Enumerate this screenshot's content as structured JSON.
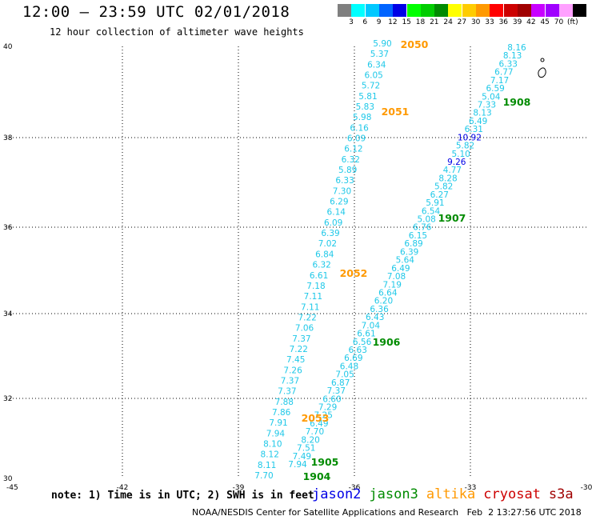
{
  "title": "12:00 – 23:59 UTC 02/01/2018",
  "subtitle": "12 hour collection of altimeter wave heights",
  "scale": {
    "colors": [
      "#7f7f7f",
      "#00ffff",
      "#00c8ff",
      "#0064ff",
      "#0000e6",
      "#00ff00",
      "#00cd00",
      "#008b00",
      "#ffff00",
      "#ffcc00",
      "#ff9900",
      "#ff0000",
      "#cd0000",
      "#a00000",
      "#c800ff",
      "#a000ff",
      "#ffa0ff",
      "#000000"
    ],
    "labels": [
      "3",
      "6",
      "9",
      "12",
      "15",
      "18",
      "21",
      "24",
      "27",
      "30",
      "33",
      "36",
      "39",
      "42",
      "45",
      "70",
      "(ft)"
    ]
  },
  "axes": {
    "x_ticks": [
      "-45",
      "-42",
      "-39",
      "-36",
      "-33",
      "-30"
    ],
    "y_ticks": [
      "40",
      "38",
      "36",
      "34",
      "32",
      "30"
    ]
  },
  "tracks": [
    {
      "name": "altika",
      "color": "#1fc8e8",
      "values": [
        "5.90",
        "5.37",
        "6.34",
        "6.05",
        "5.72",
        "5.81",
        "5.83",
        "5.98",
        "6.16",
        "6.09",
        "6.12",
        "6.32",
        "5.89",
        "6.33",
        "7.30",
        "6.29",
        "6.14",
        "6.09",
        "6.39",
        "7.02",
        "6.84",
        "6.32",
        "6.61",
        "7.18",
        "7.11",
        "7.11",
        "7.22",
        "7.06",
        "7.37",
        "7.22",
        "7.45",
        "7.26",
        "7.37",
        "7.37",
        "7.88",
        "7.86",
        "7.91",
        "7.94",
        "8.10",
        "8.12",
        "8.11",
        "7.70"
      ]
    },
    {
      "name": "jason3",
      "color": "#1fc8e8",
      "values": [
        "8.16",
        "8.13",
        "6.33",
        "6.77",
        "7.17",
        "6.59",
        "5.04",
        "7.33",
        "8.13",
        "6.49",
        "6.31",
        "10.92",
        "5.82",
        "5.10",
        "9.26",
        "4.77",
        "8.28",
        "5.82",
        "6.27",
        "5.91",
        "6.54",
        "5.08",
        "6.76",
        "6.15",
        "6.89",
        "6.39",
        "5.64",
        "6.49",
        "7.08",
        "7.19",
        "6.64",
        "6.20",
        "6.36",
        "6.43",
        "7.04",
        "6.61",
        "6.56",
        "6.63",
        "6.69",
        "6.48",
        "7.05",
        "6.87",
        "7.37",
        "6.60",
        "7.29",
        "7.25",
        "6.49",
        "7.70",
        "8.20",
        "7.51",
        "7.49",
        "7.94"
      ]
    }
  ],
  "time_labels": [
    {
      "text": "2050",
      "color": "#ff9900"
    },
    {
      "text": "2051",
      "color": "#ff9900"
    },
    {
      "text": "2052",
      "color": "#ff9900"
    },
    {
      "text": "2053",
      "color": "#ff9900"
    },
    {
      "text": "1908",
      "color": "#008b00"
    },
    {
      "text": "1907",
      "color": "#008b00"
    },
    {
      "text": "1906",
      "color": "#008b00"
    },
    {
      "text": "1905",
      "color": "#008b00"
    },
    {
      "text": "1904",
      "color": "#008b00"
    }
  ],
  "note": "note: 1) Time is in UTC; 2) SWH is in feet",
  "satellites": [
    {
      "name": "jason2",
      "color": "#0000e6"
    },
    {
      "name": "jason3",
      "color": "#008b00"
    },
    {
      "name": "altika",
      "color": "#ff9900"
    },
    {
      "name": "cryosat",
      "color": "#cd0000"
    },
    {
      "name": "s3a",
      "color": "#a00000"
    }
  ],
  "credit": "NOAA/NESDIS Center for Satellite Applications and Research   Feb  2 13:27:56 UTC 2018"
}
